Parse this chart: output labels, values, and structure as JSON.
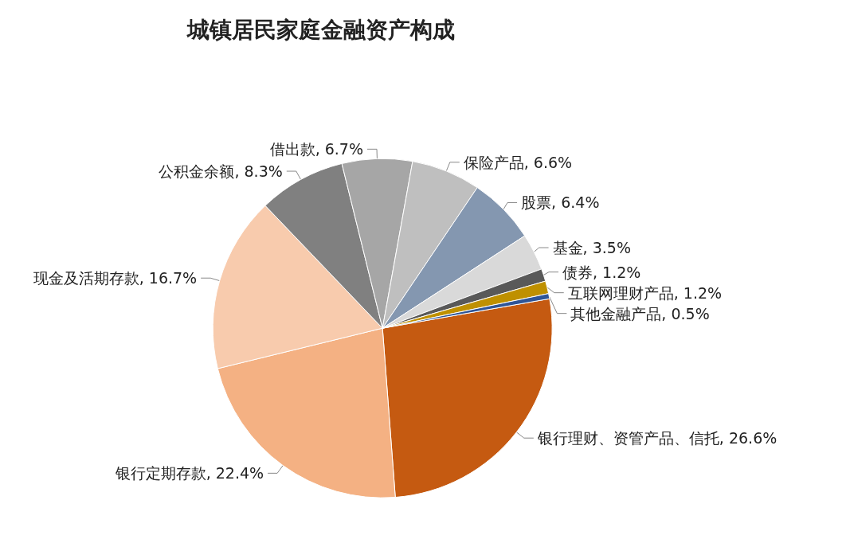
{
  "chart_data": {
    "type": "pie",
    "title": "城镇居民家庭金融资产构成",
    "categories": [
      "银行理财、资管产品、信托",
      "银行定期存款",
      "现金及活期存款",
      "公积金余额",
      "借出款",
      "保险产品",
      "股票",
      "基金",
      "债券",
      "互联网理财产品",
      "其他金融产品"
    ],
    "values": [
      26.6,
      22.4,
      16.7,
      8.3,
      6.7,
      6.6,
      6.4,
      3.5,
      1.2,
      1.2,
      0.5
    ],
    "value_labels": [
      "26.6%",
      "22.4%",
      "16.7%",
      "8.3%",
      "6.7%",
      "6.6%",
      "6.4%",
      "3.5%",
      "1.2%",
      "1.2%",
      "0.5%"
    ],
    "colors": [
      "#c55a11",
      "#f4b183",
      "#f8cbad",
      "#808080",
      "#a6a6a6",
      "#bfbfbf",
      "#8497b0",
      "#d9d9d9",
      "#595959",
      "#bf9000",
      "#2f5597"
    ],
    "legend": false
  }
}
